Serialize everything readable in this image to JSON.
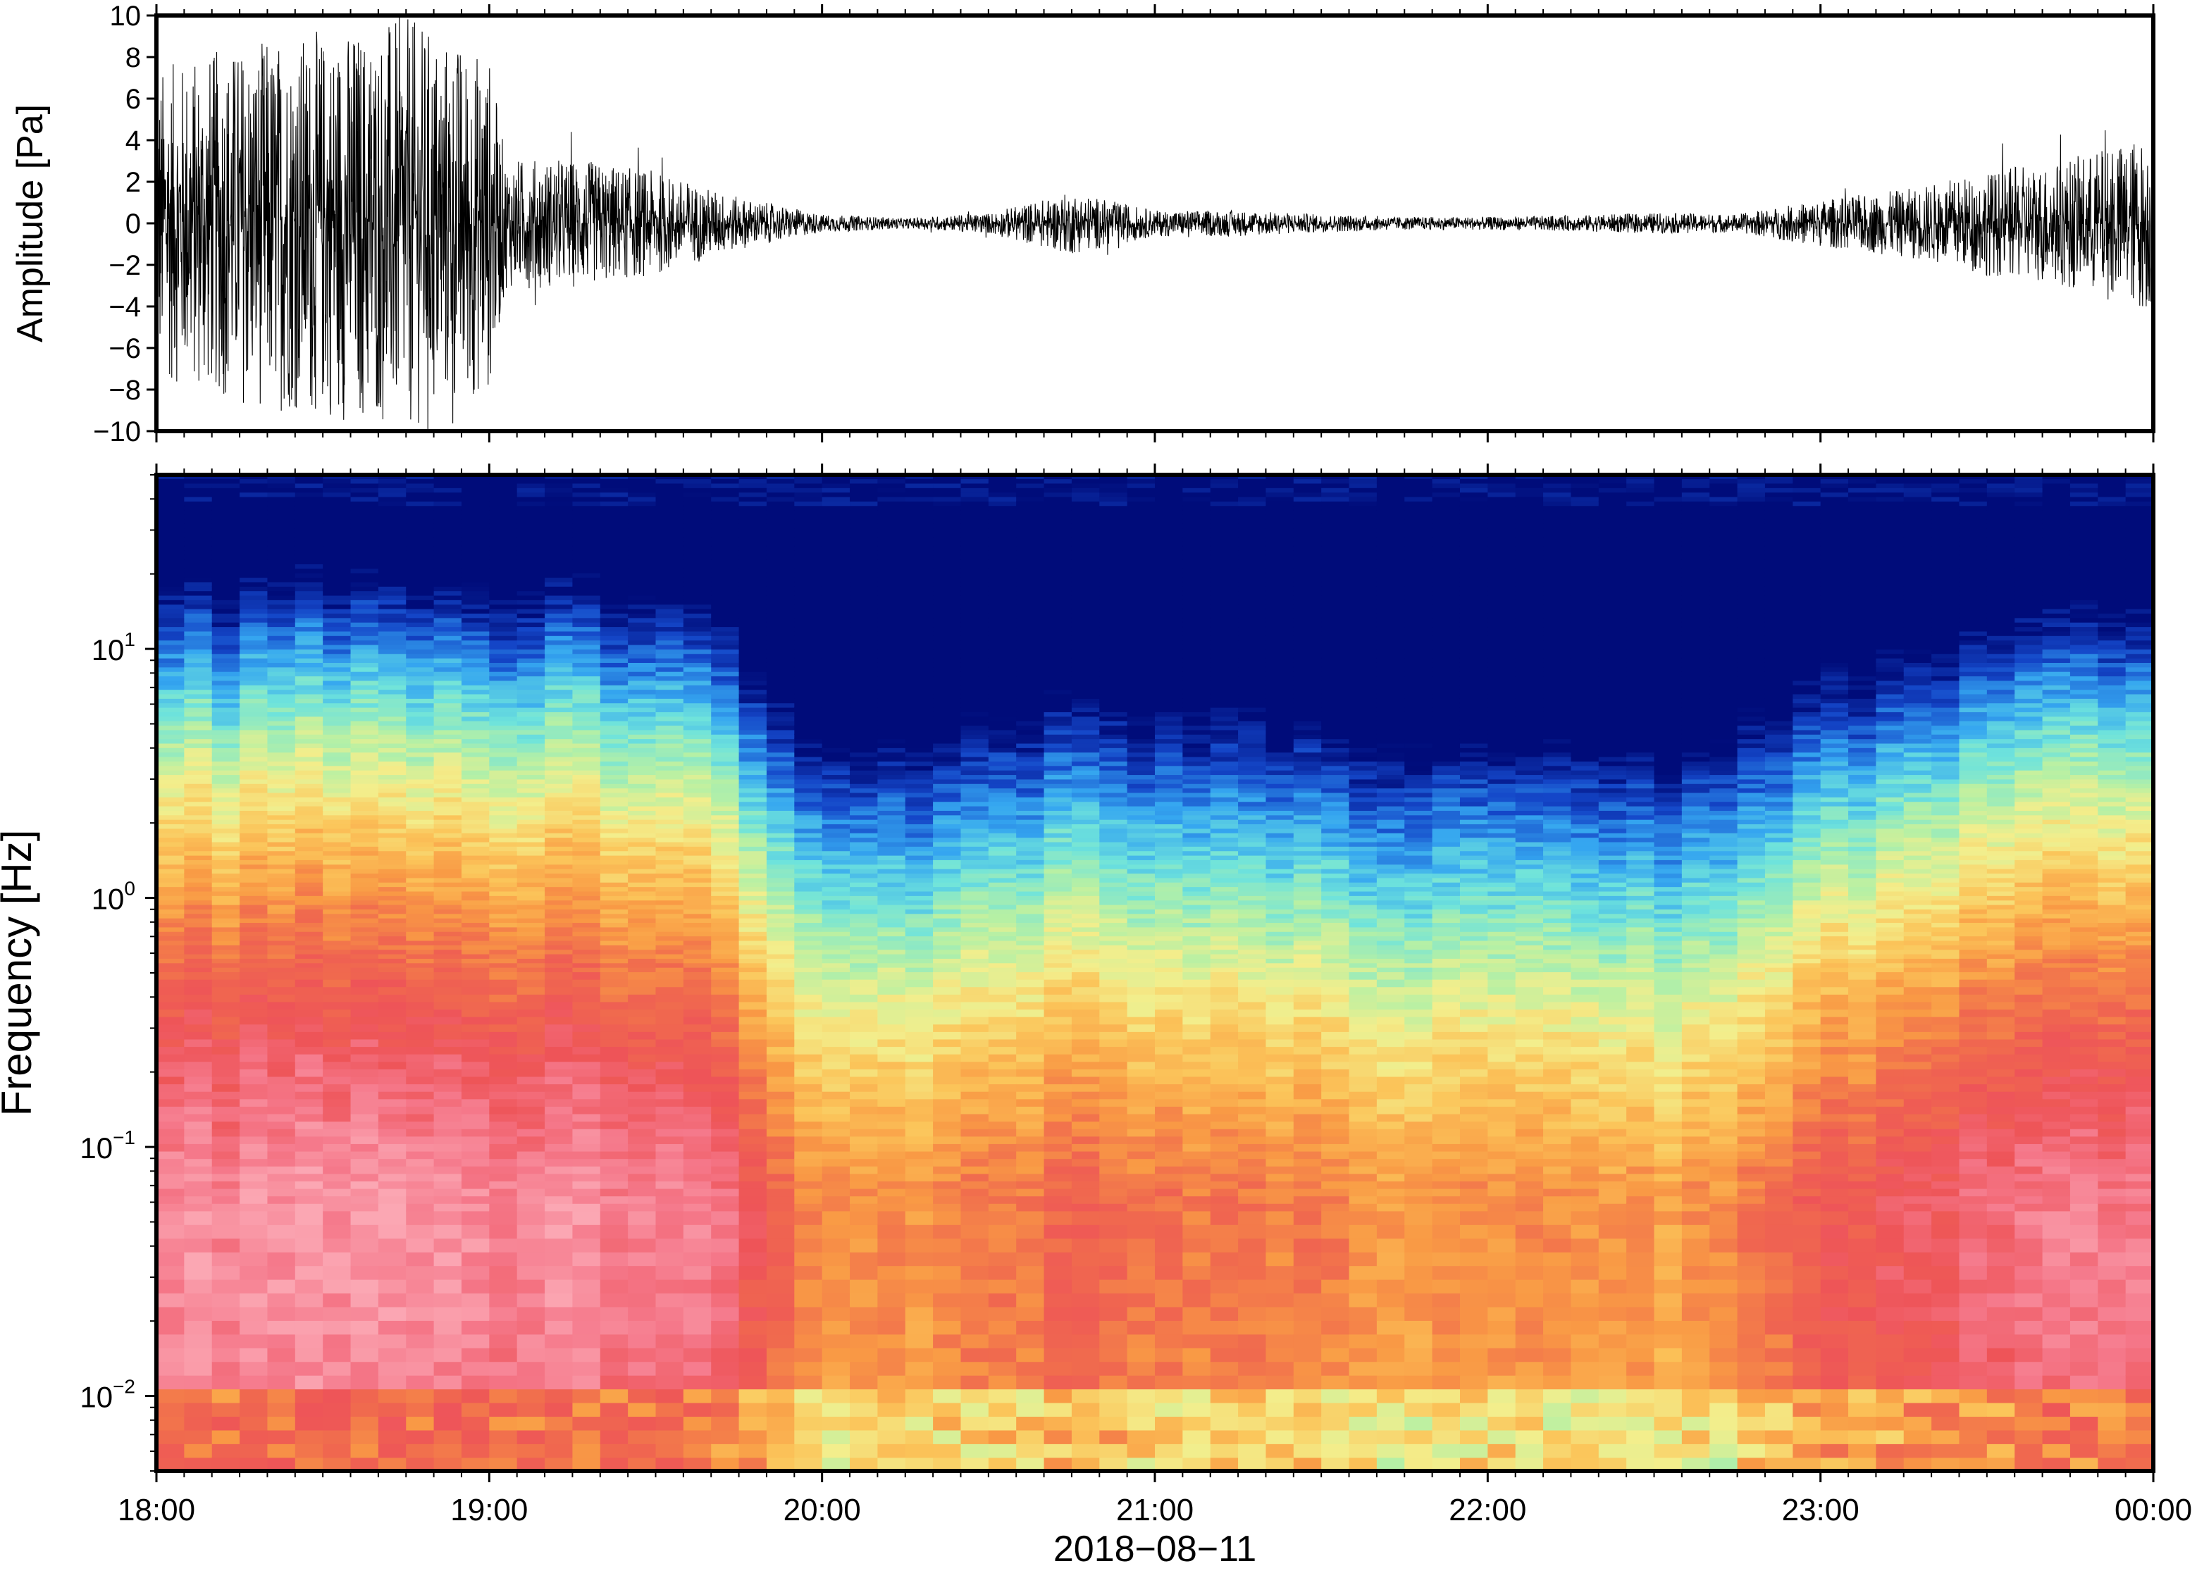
{
  "chart_data": [
    {
      "type": "line",
      "panel": "waveform",
      "title": "",
      "xlabel": "",
      "ylabel": "Amplitude [Pa]",
      "ylim": [
        -10,
        10
      ],
      "yticks": [
        -10,
        -8,
        -6,
        -4,
        -2,
        0,
        2,
        4,
        6,
        8,
        10
      ],
      "ytick_labels": [
        "−10",
        "−8",
        "−6",
        "−4",
        "−2",
        "0",
        "2",
        "4",
        "6",
        "8",
        "10"
      ],
      "xlim_hours": [
        18.0,
        24.0
      ],
      "grid": false,
      "series": [
        {
          "color": "#000000",
          "envelope_hours": [
            18.0,
            18.25,
            18.5,
            18.75,
            19.0,
            19.05,
            19.25,
            19.5,
            19.75,
            20.0,
            20.25,
            20.5,
            20.75,
            21.0,
            21.25,
            21.5,
            21.75,
            22.0,
            22.25,
            22.5,
            22.75,
            23.0,
            23.25,
            23.5,
            23.75,
            24.0
          ],
          "envelope_amplitude_pa": [
            6.0,
            7.0,
            7.5,
            8.0,
            6.5,
            2.5,
            2.5,
            2.0,
            1.0,
            0.35,
            0.2,
            0.4,
            1.2,
            0.5,
            0.5,
            0.35,
            0.25,
            0.25,
            0.3,
            0.4,
            0.35,
            0.9,
            1.3,
            2.0,
            2.5,
            3.5
          ],
          "peak_pa": [
            9.8,
            -9.9
          ]
        }
      ]
    },
    {
      "type": "heatmap",
      "panel": "spectrogram",
      "title": "",
      "xlabel": "2018−08−11",
      "ylabel": "Frequency [Hz]",
      "y_scale": "log",
      "ylim_hz": [
        0.005,
        50
      ],
      "yticks_hz": [
        0.01,
        0.1,
        1,
        10
      ],
      "ytick_labels": [
        {
          "base": "10",
          "exp": "−2"
        },
        {
          "base": "10",
          "exp": "−1"
        },
        {
          "base": "10",
          "exp": "0"
        },
        {
          "base": "10",
          "exp": "1"
        }
      ],
      "x_categories": [
        "18:00",
        "19:00",
        "20:00",
        "21:00",
        "22:00",
        "23:00",
        "00:00"
      ],
      "xlim_hours": [
        18.0,
        24.0
      ],
      "colormap": "spectral (blue = low power, red/pink = high power)",
      "colormap_stops": [
        "#000c7a",
        "#1446c8",
        "#35a6f0",
        "#6ee3dc",
        "#b7f0a4",
        "#f3ee8c",
        "#fbc55a",
        "#f99a45",
        "#f06a4e",
        "#ee5458",
        "#f5788a",
        "#fba7b3"
      ],
      "power_level_by_hour": {
        "hours": [
          18.0,
          18.5,
          19.0,
          19.5,
          19.75,
          20.0,
          20.25,
          20.5,
          20.75,
          21.0,
          21.25,
          21.5,
          21.75,
          22.0,
          22.25,
          22.5,
          22.75,
          23.0,
          23.5,
          24.0
        ],
        "relative_level": [
          1.0,
          1.02,
          1.0,
          0.97,
          0.8,
          0.28,
          0.3,
          0.42,
          0.52,
          0.45,
          0.42,
          0.4,
          0.25,
          0.33,
          0.36,
          0.25,
          0.35,
          0.6,
          0.85,
          0.95
        ]
      }
    }
  ]
}
